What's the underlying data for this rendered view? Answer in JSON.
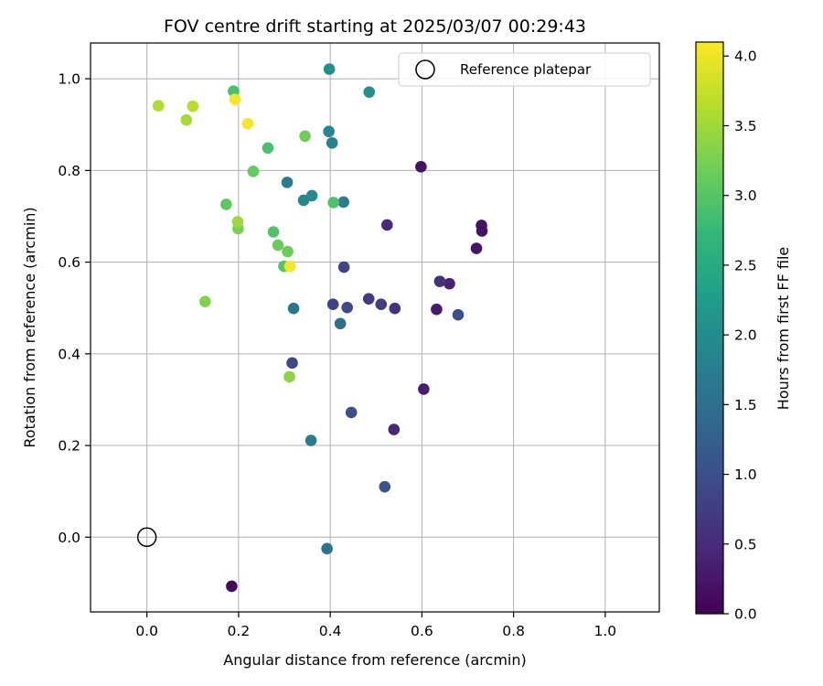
{
  "chart_data": {
    "type": "scatter",
    "title": "FOV centre drift starting at 2025/03/07 00:29:43",
    "xlabel": "Angular distance from reference (arcmin)",
    "ylabel": "Rotation from reference (arcmin)",
    "xlim": [
      -0.123,
      1.118
    ],
    "ylim": [
      -0.163,
      1.078
    ],
    "x_ticks": [
      "0.0",
      "0.2",
      "0.4",
      "0.6",
      "0.8",
      "1.0"
    ],
    "y_ticks": [
      "0.0",
      "0.2",
      "0.4",
      "0.6",
      "0.8",
      "1.0"
    ],
    "grid": true,
    "legend": {
      "placement": "top-right",
      "entries": [
        "Reference platepar"
      ]
    },
    "reference_point": {
      "x": 0.0,
      "y": 0.0,
      "marker": "open-circle",
      "label": "Reference platepar"
    },
    "colorbar": {
      "label": "Hours from first FF file",
      "range": [
        0.0,
        4.1
      ],
      "ticks": [
        "0.0",
        "0.5",
        "1.0",
        "1.5",
        "2.0",
        "2.5",
        "3.0",
        "3.5",
        "4.0"
      ],
      "colormap": "viridis",
      "colormap_stops": [
        "#440154",
        "#482878",
        "#3e4989",
        "#31688e",
        "#26828e",
        "#1f9e89",
        "#35b779",
        "#6ece58",
        "#b5de2b",
        "#fde725"
      ]
    },
    "points": [
      {
        "x": 0.185,
        "y": -0.107,
        "c": 0.1
      },
      {
        "x": 0.598,
        "y": 0.808,
        "c": 0.2
      },
      {
        "x": 0.73,
        "y": 0.68,
        "c": 0.2
      },
      {
        "x": 0.731,
        "y": 0.668,
        "c": 0.2
      },
      {
        "x": 0.719,
        "y": 0.63,
        "c": 0.25
      },
      {
        "x": 0.632,
        "y": 0.497,
        "c": 0.3
      },
      {
        "x": 0.604,
        "y": 0.323,
        "c": 0.35
      },
      {
        "x": 0.66,
        "y": 0.553,
        "c": 0.4
      },
      {
        "x": 0.539,
        "y": 0.235,
        "c": 0.45
      },
      {
        "x": 0.524,
        "y": 0.681,
        "c": 0.5
      },
      {
        "x": 0.639,
        "y": 0.558,
        "c": 0.6
      },
      {
        "x": 0.541,
        "y": 0.499,
        "c": 0.6
      },
      {
        "x": 0.484,
        "y": 0.52,
        "c": 0.7
      },
      {
        "x": 0.511,
        "y": 0.508,
        "c": 0.75
      },
      {
        "x": 0.406,
        "y": 0.508,
        "c": 0.8
      },
      {
        "x": 0.43,
        "y": 0.589,
        "c": 0.85
      },
      {
        "x": 0.317,
        "y": 0.38,
        "c": 0.9
      },
      {
        "x": 0.437,
        "y": 0.501,
        "c": 0.95
      },
      {
        "x": 0.679,
        "y": 0.485,
        "c": 1.0
      },
      {
        "x": 0.446,
        "y": 0.272,
        "c": 1.05
      },
      {
        "x": 0.519,
        "y": 0.11,
        "c": 1.1
      },
      {
        "x": 0.422,
        "y": 0.466,
        "c": 1.5
      },
      {
        "x": 0.393,
        "y": -0.025,
        "c": 1.55
      },
      {
        "x": 0.32,
        "y": 0.499,
        "c": 1.65
      },
      {
        "x": 0.358,
        "y": 0.211,
        "c": 1.7
      },
      {
        "x": 0.429,
        "y": 0.731,
        "c": 1.75
      },
      {
        "x": 0.306,
        "y": 0.774,
        "c": 1.75
      },
      {
        "x": 0.404,
        "y": 0.86,
        "c": 1.8
      },
      {
        "x": 0.342,
        "y": 0.735,
        "c": 1.85
      },
      {
        "x": 0.397,
        "y": 0.885,
        "c": 1.9
      },
      {
        "x": 0.36,
        "y": 0.745,
        "c": 1.95
      },
      {
        "x": 0.398,
        "y": 1.021,
        "c": 2.0
      },
      {
        "x": 0.485,
        "y": 0.971,
        "c": 2.05
      },
      {
        "x": 0.189,
        "y": 0.973,
        "c": 2.9
      },
      {
        "x": 0.264,
        "y": 0.849,
        "c": 2.9
      },
      {
        "x": 0.407,
        "y": 0.73,
        "c": 2.95
      },
      {
        "x": 0.276,
        "y": 0.666,
        "c": 2.95
      },
      {
        "x": 0.299,
        "y": 0.591,
        "c": 3.0
      },
      {
        "x": 0.173,
        "y": 0.726,
        "c": 3.05
      },
      {
        "x": 0.232,
        "y": 0.798,
        "c": 3.1
      },
      {
        "x": 0.286,
        "y": 0.637,
        "c": 3.15
      },
      {
        "x": 0.307,
        "y": 0.623,
        "c": 3.15
      },
      {
        "x": 0.345,
        "y": 0.875,
        "c": 3.2
      },
      {
        "x": 0.199,
        "y": 0.673,
        "c": 3.25
      },
      {
        "x": 0.127,
        "y": 0.514,
        "c": 3.3
      },
      {
        "x": 0.311,
        "y": 0.35,
        "c": 3.4
      },
      {
        "x": 0.198,
        "y": 0.688,
        "c": 3.5
      },
      {
        "x": 0.086,
        "y": 0.91,
        "c": 3.55
      },
      {
        "x": 0.025,
        "y": 0.941,
        "c": 3.6
      },
      {
        "x": 0.1,
        "y": 0.94,
        "c": 3.65
      },
      {
        "x": 0.192,
        "y": 0.955,
        "c": 4.05
      },
      {
        "x": 0.22,
        "y": 0.902,
        "c": 4.05
      },
      {
        "x": 0.312,
        "y": 0.591,
        "c": 4.05
      }
    ]
  }
}
